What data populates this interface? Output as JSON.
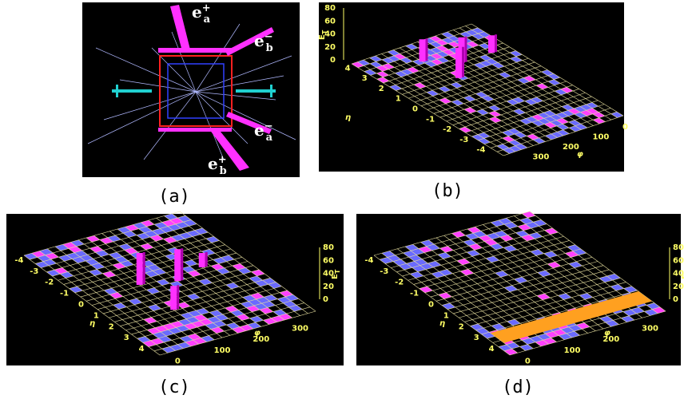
{
  "panels": [
    {
      "label": "(a)",
      "particles": [
        {
          "base": "e",
          "sub": "a",
          "sup": "+"
        },
        {
          "base": "e",
          "sub": "b",
          "sup": "−"
        },
        {
          "base": "e",
          "sub": "a",
          "sup": "−"
        },
        {
          "base": "e",
          "sub": "b",
          "sup": "+"
        }
      ]
    },
    {
      "label": "(b)",
      "et_label": {
        "base": "E",
        "sub": "T"
      },
      "et_ticks": [
        "80",
        "60",
        "40",
        "20",
        "0"
      ],
      "eta_label": "η",
      "eta_ticks": [
        "4",
        "3",
        "2",
        "1",
        "0",
        "-1",
        "-2",
        "-3",
        "-4"
      ],
      "phi_label": "φ",
      "phi_ticks": [
        "300",
        "200",
        "100",
        "0"
      ]
    },
    {
      "label": "(c)",
      "et_label": {
        "base": "E",
        "sub": "T"
      },
      "et_ticks": [
        "80",
        "60",
        "40",
        "20",
        "0"
      ],
      "eta_label": "η",
      "eta_ticks": [
        "-4",
        "-3",
        "-2",
        "-1",
        "0",
        "1",
        "2",
        "3",
        "4"
      ],
      "phi_label": "φ",
      "phi_ticks": [
        "0",
        "100",
        "200",
        "300"
      ]
    },
    {
      "label": "(d)",
      "et_label": {
        "base": "E",
        "sub": "T"
      },
      "et_ticks": [
        "80",
        "60",
        "40",
        "20",
        "0"
      ],
      "eta_label": "η",
      "eta_ticks": [
        "-4",
        "-3",
        "-2",
        "-1",
        "0",
        "1",
        "2",
        "3",
        "4"
      ],
      "phi_label": "φ",
      "phi_ticks": [
        "0",
        "100",
        "200",
        "300"
      ]
    }
  ]
}
